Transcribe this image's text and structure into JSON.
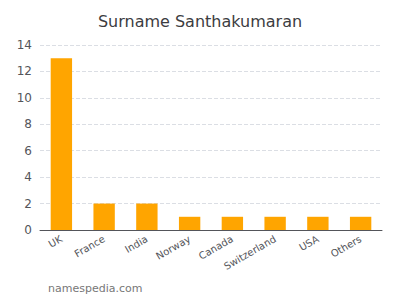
{
  "chart_data": {
    "type": "bar",
    "title": "Surname Santhakumaran",
    "categories": [
      "UK",
      "France",
      "India",
      "Norway",
      "Canada",
      "Switzerland",
      "USA",
      "Others"
    ],
    "values": [
      13,
      2,
      2,
      1,
      1,
      1,
      1,
      1
    ],
    "color": "#FFA500",
    "ylim": [
      0,
      14
    ],
    "yticks": [
      0,
      2,
      4,
      6,
      8,
      10,
      12,
      14
    ],
    "grid": true,
    "annotations": [
      "namespedia.com"
    ]
  }
}
